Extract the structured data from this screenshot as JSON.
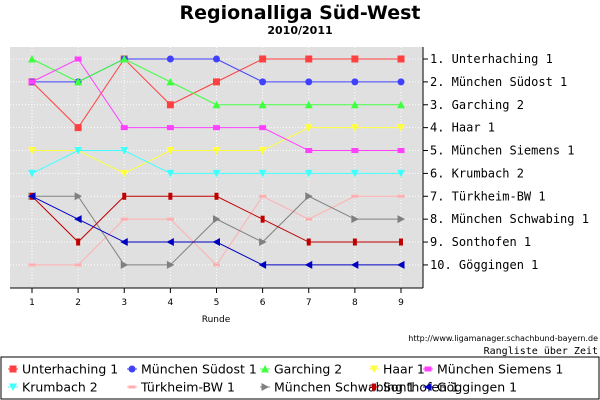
{
  "chart_data": {
    "type": "line",
    "title": "Regionalliga Süd-West",
    "subtitle": "2010/2011",
    "xlabel": "Runde",
    "x": [
      1,
      2,
      3,
      4,
      5,
      6,
      7,
      8,
      9
    ],
    "ylim": [
      10.5,
      0.5
    ],
    "y_inverted": true,
    "grid": true,
    "url": "http://www.ligamanager.schachbund-bayern.de",
    "note": "Rangliste über Zeit",
    "legend_position": "bottom",
    "final_ranking": [
      "1. Unterhaching 1",
      "2. München Südost 1",
      "3. Garching 2",
      "4. Haar 1",
      "5. München Siemens 1",
      "6. Krumbach 2",
      "7. Türkheim-BW 1",
      "8. München Schwabing 1",
      "9. Sonthofen 1",
      "10. Göggingen 1"
    ],
    "series": [
      {
        "name": "Unterhaching 1",
        "color": "#ff4040",
        "marker": "square",
        "values": [
          2,
          4,
          1,
          3,
          2,
          1,
          1,
          1,
          1
        ]
      },
      {
        "name": "München Südost 1",
        "color": "#4040ff",
        "marker": "circle",
        "values": [
          2,
          2,
          1,
          1,
          1,
          2,
          2,
          2,
          2
        ]
      },
      {
        "name": "Garching 2",
        "color": "#40ff40",
        "marker": "triangle-up",
        "values": [
          1,
          2,
          1,
          2,
          3,
          3,
          3,
          3,
          3
        ]
      },
      {
        "name": "Haar 1",
        "color": "#ffff40",
        "marker": "triangle-down",
        "values": [
          5,
          5,
          6,
          5,
          5,
          5,
          4,
          4,
          4
        ]
      },
      {
        "name": "München Siemens 1",
        "color": "#ff40ff",
        "marker": "square-thin",
        "values": [
          2,
          1,
          4,
          4,
          4,
          4,
          5,
          5,
          5
        ]
      },
      {
        "name": "Krumbach 2",
        "color": "#40ffff",
        "marker": "triangle-down",
        "values": [
          6,
          5,
          5,
          6,
          6,
          6,
          6,
          6,
          6
        ]
      },
      {
        "name": "Türkheim-BW 1",
        "color": "#ffafaf",
        "marker": "dash",
        "values": [
          10,
          10,
          8,
          8,
          10,
          7,
          8,
          7,
          7
        ]
      },
      {
        "name": "München Schwabing 1",
        "color": "#808080",
        "marker": "triangle-right",
        "values": [
          7,
          7,
          10,
          10,
          8,
          9,
          7,
          8,
          8
        ]
      },
      {
        "name": "Sonthofen 1",
        "color": "#c00000",
        "marker": "bar",
        "values": [
          7,
          9,
          7,
          7,
          7,
          8,
          9,
          9,
          9
        ]
      },
      {
        "name": "Göggingen 1",
        "color": "#0000c0",
        "marker": "triangle-left",
        "values": [
          7,
          8,
          9,
          9,
          9,
          10,
          10,
          10,
          10
        ]
      }
    ]
  }
}
